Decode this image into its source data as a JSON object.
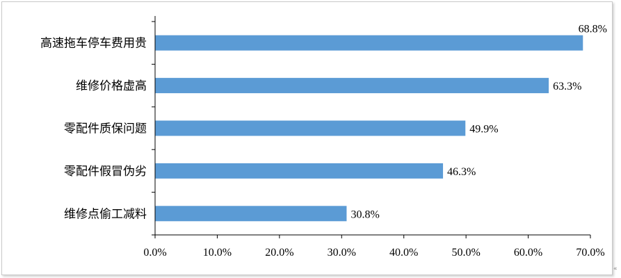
{
  "chart_data": {
    "type": "bar",
    "orientation": "horizontal",
    "categories": [
      "高速拖车停车费用贵",
      "维修价格虚高",
      "零配件质保问题",
      "零配件假冒伪劣",
      "维修点偷工减料"
    ],
    "values": [
      68.8,
      63.3,
      49.9,
      46.3,
      30.8
    ],
    "value_labels": [
      "68.8%",
      "63.3%",
      "49.9%",
      "46.3%",
      "30.8%"
    ],
    "title": "",
    "xlabel": "",
    "ylabel": "",
    "xlim": [
      0,
      70
    ],
    "x_ticks": [
      0,
      10,
      20,
      30,
      40,
      50,
      60,
      70
    ],
    "x_tick_labels": [
      "0.0%",
      "10.0%",
      "20.0%",
      "30.0%",
      "40.0%",
      "50.0%",
      "60.0%",
      "70.0%"
    ],
    "grid": false,
    "legend": "none",
    "bar_color": "#5b9bd5",
    "axis_color": "#000000"
  },
  "edge_mark": "«"
}
